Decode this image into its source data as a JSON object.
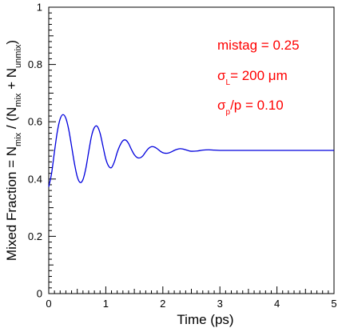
{
  "chart_data": {
    "type": "line",
    "title": "",
    "xlabel": "Time  (ps)",
    "ylabel": {
      "parts": [
        {
          "t": "Mixed Fraction = N",
          "sub": false
        },
        {
          "t": "mix",
          "sub": true
        },
        {
          "t": " / (N",
          "sub": false
        },
        {
          "t": "mix",
          "sub": true
        },
        {
          "t": " + N",
          "sub": false
        },
        {
          "t": "unmix",
          "sub": true
        },
        {
          "t": ")",
          "sub": false
        }
      ]
    },
    "xlim": [
      0,
      5
    ],
    "ylim": [
      0,
      1
    ],
    "x_ticks": [
      0,
      1,
      2,
      3,
      4,
      5
    ],
    "x_tick_labels": [
      "0",
      "1",
      "2",
      "3",
      "4",
      "5"
    ],
    "y_ticks": [
      0,
      0.2,
      0.4,
      0.6,
      0.8,
      1
    ],
    "y_tick_labels": [
      "0",
      "0.2",
      "0.4",
      "0.6",
      "0.8",
      "1"
    ],
    "grid": false,
    "line_color": "#0000dd",
    "annotation_color": "#ff0000",
    "annotations": [
      {
        "parts": [
          {
            "t": "mistag = 0.25",
            "sub": false
          }
        ]
      },
      {
        "parts": [
          {
            "t": "σ",
            "sub": false
          },
          {
            "t": "L",
            "sub": true
          },
          {
            "t": "= 200 μm",
            "sub": false
          }
        ]
      },
      {
        "parts": [
          {
            "t": "σ",
            "sub": false
          },
          {
            "t": "p",
            "sub": true
          },
          {
            "t": "/p = 0.10",
            "sub": false
          }
        ]
      }
    ],
    "series": [
      {
        "x": [
          0,
          0.05,
          0.1,
          0.15,
          0.2,
          0.25,
          0.3,
          0.35,
          0.4,
          0.45,
          0.5,
          0.55,
          0.6,
          0.65,
          0.7,
          0.75,
          0.8,
          0.85,
          0.9,
          0.95,
          1.0,
          1.05,
          1.1,
          1.15,
          1.2,
          1.25,
          1.3,
          1.35,
          1.4,
          1.45,
          1.5,
          1.55,
          1.6,
          1.65,
          1.7,
          1.75,
          1.8,
          1.85,
          1.9,
          1.95,
          2.0,
          2.05,
          2.1,
          2.15,
          2.2,
          2.25,
          2.3,
          2.35,
          2.4,
          2.45,
          2.5,
          2.6,
          2.7,
          2.8,
          2.9,
          3.0,
          3.2,
          3.4,
          3.6,
          3.8,
          4.0,
          4.5,
          5.0
        ],
        "y": [
          0.373,
          0.42,
          0.495,
          0.565,
          0.61,
          0.625,
          0.612,
          0.573,
          0.515,
          0.455,
          0.408,
          0.388,
          0.398,
          0.437,
          0.495,
          0.55,
          0.58,
          0.584,
          0.56,
          0.515,
          0.47,
          0.445,
          0.44,
          0.46,
          0.493,
          0.518,
          0.534,
          0.536,
          0.524,
          0.503,
          0.485,
          0.475,
          0.474,
          0.481,
          0.495,
          0.507,
          0.513,
          0.512,
          0.506,
          0.498,
          0.492,
          0.49,
          0.491,
          0.495,
          0.5,
          0.504,
          0.506,
          0.505,
          0.502,
          0.499,
          0.497,
          0.498,
          0.501,
          0.502,
          0.501,
          0.5,
          0.5,
          0.5,
          0.5,
          0.5,
          0.5,
          0.5,
          0.5
        ]
      }
    ]
  }
}
